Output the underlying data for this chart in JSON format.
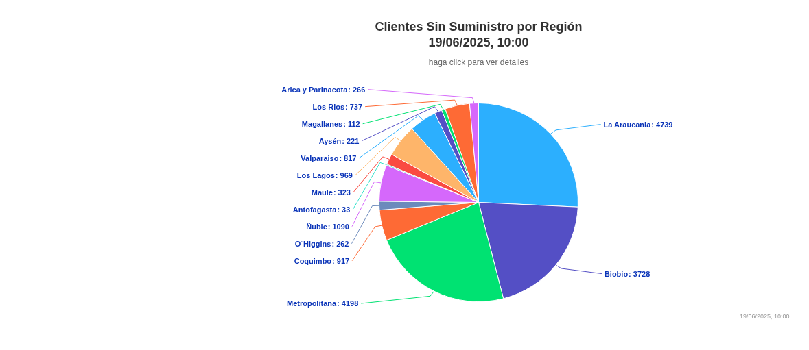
{
  "chart_data": {
    "type": "pie",
    "title": "Clientes Sin Suministro por Región\n19/06/2025, 10:00",
    "subtitle": "haga click para ver detalles",
    "categories": [
      "La Araucania",
      "Biobio",
      "Metropolitana",
      "Coquimbo",
      "O`Higgins",
      "Ñuble",
      "Antofagasta",
      "Maule",
      "Los Lagos",
      "Valparaiso",
      "Aysén",
      "Magallanes",
      "Los Rios",
      "Arica y Parinacota"
    ],
    "values": [
      4739,
      3728,
      4198,
      917,
      262,
      1090,
      33,
      323,
      969,
      817,
      221,
      112,
      737,
      266
    ],
    "colors": [
      "#2caffe",
      "#544fc5",
      "#00e272",
      "#fe6a35",
      "#6b8abc",
      "#d568fb",
      "#2ee0ca",
      "#fa4b42",
      "#feb56a",
      "#2caffe",
      "#544fc5",
      "#00e272",
      "#fe6a35",
      "#d568fb"
    ],
    "value_labels": [
      ": 4739",
      ": 3728",
      ": 4198",
      ": 917",
      ": 262",
      ": 1090",
      ": 33",
      ": 323",
      ": 969",
      ": 817",
      ": 221",
      ": 112",
      ": 737",
      ": 266"
    ],
    "annotations": [
      "19/06/2025, 10:00"
    ]
  }
}
